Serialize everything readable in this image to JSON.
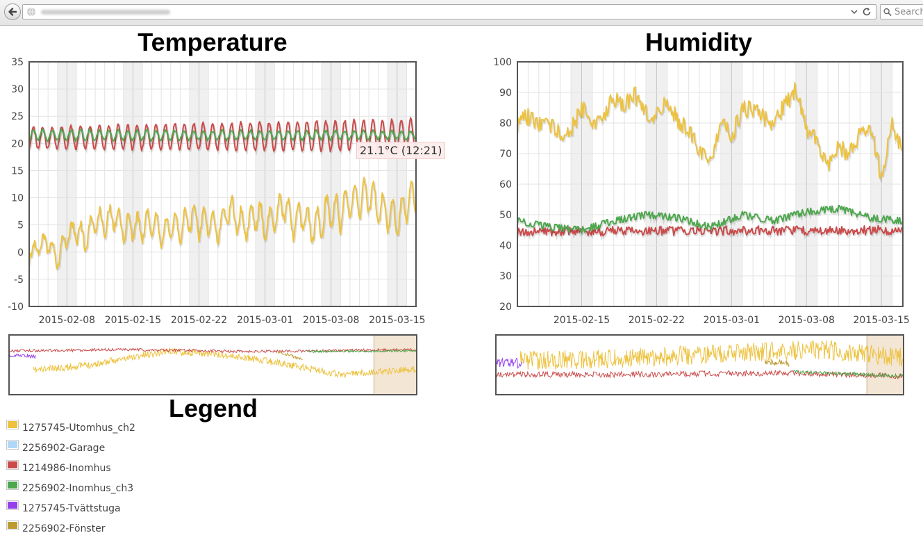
{
  "browser": {
    "search_placeholder": "Search"
  },
  "colors": {
    "utomhus": "#edc240",
    "garage": "#afd8f8",
    "inomhus": "#cb4b4b",
    "inomhus_ch3": "#4da74d",
    "tvattstuga": "#9440ed",
    "fonster": "#bd9b33",
    "weekend_band": "#f0f0f0",
    "selection": "#f3e6d4"
  },
  "temperature": {
    "title": "Temperature",
    "tooltip": "21.1°C (12:21)"
  },
  "humidity": {
    "title": "Humidity"
  },
  "legend": {
    "title": "Legend",
    "items": [
      {
        "label": "1275745-Utomhus_ch2",
        "color": "#edc240"
      },
      {
        "label": "2256902-Garage",
        "color": "#afd8f8"
      },
      {
        "label": "1214986-Inomhus",
        "color": "#cb4b4b"
      },
      {
        "label": "2256902-Inomhus_ch3",
        "color": "#4da74d"
      },
      {
        "label": "1275745-Tvättstuga",
        "color": "#9440ed"
      },
      {
        "label": "2256902-Fönster",
        "color": "#bd9b33"
      }
    ]
  },
  "chart_data": [
    {
      "type": "line",
      "title": "Temperature",
      "ylim": [
        -10,
        35
      ],
      "yticks": [
        -10,
        -5,
        0,
        5,
        10,
        15,
        20,
        25,
        30,
        35
      ],
      "xlim": [
        "2015-02-04",
        "2015-03-17"
      ],
      "xticks": [
        "2015-02-08",
        "2015-02-15",
        "2015-02-22",
        "2015-03-01",
        "2015-03-08",
        "2015-03-15"
      ],
      "grid": true,
      "series": [
        {
          "name": "1275745-Utomhus_ch2",
          "color": "#edc240",
          "x": [
            "2015-02-04",
            "2015-02-05",
            "2015-02-06",
            "2015-02-07",
            "2015-02-08",
            "2015-02-09",
            "2015-02-10",
            "2015-02-11",
            "2015-02-12",
            "2015-02-13",
            "2015-02-14",
            "2015-02-15",
            "2015-02-16",
            "2015-02-17",
            "2015-02-18",
            "2015-02-19",
            "2015-02-20",
            "2015-02-21",
            "2015-02-22",
            "2015-02-23",
            "2015-02-24",
            "2015-02-25",
            "2015-02-26",
            "2015-02-27",
            "2015-02-28",
            "2015-03-01",
            "2015-03-02",
            "2015-03-03",
            "2015-03-04",
            "2015-03-05",
            "2015-03-06",
            "2015-03-07",
            "2015-03-08",
            "2015-03-09",
            "2015-03-10",
            "2015-03-11",
            "2015-03-12",
            "2015-03-13",
            "2015-03-14",
            "2015-03-15",
            "2015-03-16",
            "2015-03-17"
          ],
          "y": [
            -0.5,
            1,
            2,
            -1.5,
            3,
            4,
            2,
            6,
            5,
            7,
            4,
            5,
            4,
            6,
            3,
            5,
            4,
            7,
            5,
            6,
            4,
            8,
            6,
            5,
            7,
            5,
            6,
            9,
            5,
            7,
            4,
            6,
            8,
            7,
            10,
            9,
            11,
            8,
            7,
            6,
            9,
            10
          ],
          "amplitude": [
            1,
            1.5,
            2,
            1.5,
            2,
            2,
            2,
            2.5,
            2,
            2.5,
            2,
            2.5,
            2,
            2.5,
            2,
            2.5,
            2,
            3,
            2.5,
            2.5,
            2,
            3,
            2.5,
            2.5,
            3,
            2.5,
            2.5,
            3,
            2.5,
            3,
            2.5,
            3,
            3,
            3,
            3,
            3,
            3.5,
            3,
            3,
            3,
            3,
            3
          ]
        },
        {
          "name": "1214986-Inomhus",
          "color": "#cb4b4b",
          "x": [
            "2015-02-04",
            "2015-03-17"
          ],
          "y": [
            21,
            21.5
          ],
          "amplitude_start": 2,
          "amplitude_end": 3,
          "period_days": 1
        },
        {
          "name": "2256902-Inomhus_ch3",
          "color": "#4da74d",
          "x": [
            "2015-02-04",
            "2015-03-17"
          ],
          "y": [
            21.5,
            21.5
          ],
          "amplitude_start": 1,
          "amplitude_end": 0.7,
          "period_days": 1
        }
      ],
      "tooltip": "21.1°C (12:21)"
    },
    {
      "type": "line",
      "title": "Humidity",
      "ylim": [
        20,
        100
      ],
      "yticks": [
        20,
        30,
        40,
        50,
        60,
        70,
        80,
        90,
        100
      ],
      "xlim": [
        "2015-02-09",
        "2015-03-17"
      ],
      "xticks": [
        "2015-02-15",
        "2015-02-22",
        "2015-03-01",
        "2015-03-08",
        "2015-03-15"
      ],
      "grid": true,
      "series": [
        {
          "name": "1275745-Utomhus_ch2",
          "color": "#edc240",
          "x": [
            "2015-02-09",
            "2015-02-10",
            "2015-02-11",
            "2015-02-12",
            "2015-02-13",
            "2015-02-14",
            "2015-02-15",
            "2015-02-16",
            "2015-02-17",
            "2015-02-18",
            "2015-02-19",
            "2015-02-20",
            "2015-02-21",
            "2015-02-22",
            "2015-02-23",
            "2015-02-24",
            "2015-02-25",
            "2015-02-26",
            "2015-02-27",
            "2015-02-28",
            "2015-03-01",
            "2015-03-02",
            "2015-03-03",
            "2015-03-04",
            "2015-03-05",
            "2015-03-06",
            "2015-03-07",
            "2015-03-08",
            "2015-03-09",
            "2015-03-10",
            "2015-03-11",
            "2015-03-12",
            "2015-03-13",
            "2015-03-14",
            "2015-03-15",
            "2015-03-16",
            "2015-03-17"
          ],
          "y": [
            80,
            82,
            79,
            80,
            76,
            78,
            85,
            80,
            83,
            88,
            86,
            89,
            84,
            82,
            88,
            80,
            78,
            72,
            68,
            80,
            76,
            84,
            85,
            82,
            80,
            86,
            91,
            78,
            74,
            66,
            72,
            70,
            76,
            78,
            62,
            80,
            70
          ]
        },
        {
          "name": "1214986-Inomhus",
          "color": "#cb4b4b",
          "x": [
            "2015-02-09",
            "2015-03-17"
          ],
          "y": [
            44.5,
            45
          ],
          "noise": 1.5
        },
        {
          "name": "2256902-Inomhus_ch3",
          "color": "#4da74d",
          "x": [
            "2015-02-09",
            "2015-02-12",
            "2015-02-15",
            "2015-02-18",
            "2015-02-21",
            "2015-02-24",
            "2015-02-27",
            "2015-03-02",
            "2015-03-05",
            "2015-03-08",
            "2015-03-11",
            "2015-03-14",
            "2015-03-17"
          ],
          "y": [
            48,
            46,
            45,
            48,
            50,
            49,
            46,
            50,
            48,
            51,
            52,
            49,
            48
          ]
        }
      ]
    }
  ]
}
